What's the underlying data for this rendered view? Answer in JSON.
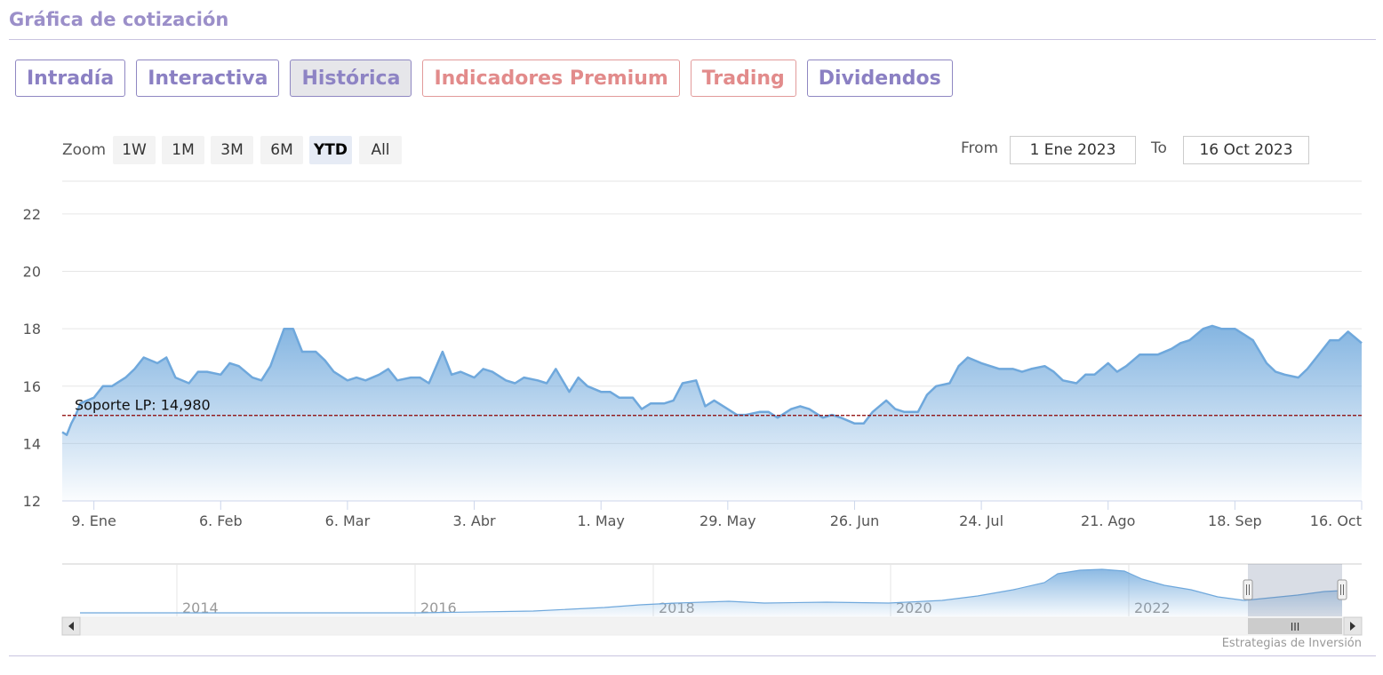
{
  "header": {
    "title": "Gráfica de cotización"
  },
  "tabs": [
    {
      "label": "Intradía",
      "active": false,
      "premium": false
    },
    {
      "label": "Interactiva",
      "active": false,
      "premium": false
    },
    {
      "label": "Histórica",
      "active": true,
      "premium": false
    },
    {
      "label": "Indicadores Premium",
      "active": false,
      "premium": true
    },
    {
      "label": "Trading",
      "active": false,
      "premium": true
    },
    {
      "label": "Dividendos",
      "active": false,
      "premium": false
    }
  ],
  "zoom": {
    "label": "Zoom",
    "buttons": [
      {
        "label": "1W",
        "active": false
      },
      {
        "label": "1M",
        "active": false
      },
      {
        "label": "3M",
        "active": false
      },
      {
        "label": "6M",
        "active": false
      },
      {
        "label": "YTD",
        "active": true
      },
      {
        "label": "All",
        "active": false
      }
    ]
  },
  "range": {
    "from_label": "From",
    "from_value": "1 Ene 2023",
    "to_label": "To",
    "to_value": "16 Oct 2023"
  },
  "credits": "Estrategias de Inversión",
  "colors": {
    "line": "#6fa8dc",
    "accent": "#9b8fc9",
    "premium": "#e28b8b",
    "support": "#8b0000"
  },
  "chart_data": {
    "type": "area",
    "title": "",
    "xlabel": "",
    "ylabel": "",
    "ylim": [
      12,
      22.4
    ],
    "y_ticks": [
      12,
      14,
      16,
      18,
      20,
      22
    ],
    "grid": true,
    "x_ticks": [
      {
        "date": "2023-01-09",
        "label": "9. Ene"
      },
      {
        "date": "2023-02-06",
        "label": "6. Feb"
      },
      {
        "date": "2023-03-06",
        "label": "6. Mar"
      },
      {
        "date": "2023-04-03",
        "label": "3. Abr"
      },
      {
        "date": "2023-05-01",
        "label": "1. May"
      },
      {
        "date": "2023-05-29",
        "label": "29. May"
      },
      {
        "date": "2023-06-26",
        "label": "26. Jun"
      },
      {
        "date": "2023-07-24",
        "label": "24. Jul"
      },
      {
        "date": "2023-08-21",
        "label": "21. Ago"
      },
      {
        "date": "2023-09-18",
        "label": "18. Sep"
      },
      {
        "date": "2023-10-16",
        "label": "16. Oct"
      }
    ],
    "x_range": [
      "2023-01-02",
      "2023-10-16"
    ],
    "series": [
      {
        "points": [
          [
            "2023-01-02",
            14.4
          ],
          [
            "2023-01-03",
            14.3
          ],
          [
            "2023-01-04",
            14.7
          ],
          [
            "2023-01-05",
            15.0
          ],
          [
            "2023-01-06",
            15.4
          ],
          [
            "2023-01-09",
            15.6
          ],
          [
            "2023-01-11",
            16.0
          ],
          [
            "2023-01-13",
            16.0
          ],
          [
            "2023-01-16",
            16.3
          ],
          [
            "2023-01-18",
            16.6
          ],
          [
            "2023-01-20",
            17.0
          ],
          [
            "2023-01-23",
            16.8
          ],
          [
            "2023-01-25",
            17.0
          ],
          [
            "2023-01-27",
            16.3
          ],
          [
            "2023-01-30",
            16.1
          ],
          [
            "2023-02-01",
            16.5
          ],
          [
            "2023-02-03",
            16.5
          ],
          [
            "2023-02-06",
            16.4
          ],
          [
            "2023-02-08",
            16.8
          ],
          [
            "2023-02-10",
            16.7
          ],
          [
            "2023-02-13",
            16.3
          ],
          [
            "2023-02-15",
            16.2
          ],
          [
            "2023-02-17",
            16.7
          ],
          [
            "2023-02-20",
            18.0
          ],
          [
            "2023-02-22",
            18.0
          ],
          [
            "2023-02-24",
            17.2
          ],
          [
            "2023-02-27",
            17.2
          ],
          [
            "2023-03-01",
            16.9
          ],
          [
            "2023-03-03",
            16.5
          ],
          [
            "2023-03-06",
            16.2
          ],
          [
            "2023-03-08",
            16.3
          ],
          [
            "2023-03-10",
            16.2
          ],
          [
            "2023-03-13",
            16.4
          ],
          [
            "2023-03-15",
            16.6
          ],
          [
            "2023-03-17",
            16.2
          ],
          [
            "2023-03-20",
            16.3
          ],
          [
            "2023-03-22",
            16.3
          ],
          [
            "2023-03-24",
            16.1
          ],
          [
            "2023-03-27",
            17.2
          ],
          [
            "2023-03-29",
            16.4
          ],
          [
            "2023-03-31",
            16.5
          ],
          [
            "2023-04-03",
            16.3
          ],
          [
            "2023-04-05",
            16.6
          ],
          [
            "2023-04-07",
            16.5
          ],
          [
            "2023-04-10",
            16.2
          ],
          [
            "2023-04-12",
            16.1
          ],
          [
            "2023-04-14",
            16.3
          ],
          [
            "2023-04-17",
            16.2
          ],
          [
            "2023-04-19",
            16.1
          ],
          [
            "2023-04-21",
            16.6
          ],
          [
            "2023-04-24",
            15.8
          ],
          [
            "2023-04-26",
            16.3
          ],
          [
            "2023-04-28",
            16.0
          ],
          [
            "2023-05-01",
            15.8
          ],
          [
            "2023-05-03",
            15.8
          ],
          [
            "2023-05-05",
            15.6
          ],
          [
            "2023-05-08",
            15.6
          ],
          [
            "2023-05-10",
            15.2
          ],
          [
            "2023-05-12",
            15.4
          ],
          [
            "2023-05-15",
            15.4
          ],
          [
            "2023-05-17",
            15.5
          ],
          [
            "2023-05-19",
            16.1
          ],
          [
            "2023-05-22",
            16.2
          ],
          [
            "2023-05-24",
            15.3
          ],
          [
            "2023-05-26",
            15.5
          ],
          [
            "2023-05-29",
            15.2
          ],
          [
            "2023-05-31",
            15.0
          ],
          [
            "2023-06-02",
            15.0
          ],
          [
            "2023-06-05",
            15.1
          ],
          [
            "2023-06-07",
            15.1
          ],
          [
            "2023-06-09",
            14.9
          ],
          [
            "2023-06-12",
            15.2
          ],
          [
            "2023-06-14",
            15.3
          ],
          [
            "2023-06-16",
            15.2
          ],
          [
            "2023-06-19",
            14.9
          ],
          [
            "2023-06-21",
            15.0
          ],
          [
            "2023-06-23",
            14.9
          ],
          [
            "2023-06-26",
            14.7
          ],
          [
            "2023-06-28",
            14.7
          ],
          [
            "2023-06-30",
            15.1
          ],
          [
            "2023-07-03",
            15.5
          ],
          [
            "2023-07-05",
            15.2
          ],
          [
            "2023-07-07",
            15.1
          ],
          [
            "2023-07-10",
            15.1
          ],
          [
            "2023-07-12",
            15.7
          ],
          [
            "2023-07-14",
            16.0
          ],
          [
            "2023-07-17",
            16.1
          ],
          [
            "2023-07-19",
            16.7
          ],
          [
            "2023-07-21",
            17.0
          ],
          [
            "2023-07-24",
            16.8
          ],
          [
            "2023-07-26",
            16.7
          ],
          [
            "2023-07-28",
            16.6
          ],
          [
            "2023-07-31",
            16.6
          ],
          [
            "2023-08-02",
            16.5
          ],
          [
            "2023-08-04",
            16.6
          ],
          [
            "2023-08-07",
            16.7
          ],
          [
            "2023-08-09",
            16.5
          ],
          [
            "2023-08-11",
            16.2
          ],
          [
            "2023-08-14",
            16.1
          ],
          [
            "2023-08-16",
            16.4
          ],
          [
            "2023-08-18",
            16.4
          ],
          [
            "2023-08-21",
            16.8
          ],
          [
            "2023-08-23",
            16.5
          ],
          [
            "2023-08-25",
            16.7
          ],
          [
            "2023-08-28",
            17.1
          ],
          [
            "2023-08-30",
            17.1
          ],
          [
            "2023-09-01",
            17.1
          ],
          [
            "2023-09-04",
            17.3
          ],
          [
            "2023-09-06",
            17.5
          ],
          [
            "2023-09-08",
            17.6
          ],
          [
            "2023-09-11",
            18.0
          ],
          [
            "2023-09-13",
            18.1
          ],
          [
            "2023-09-15",
            18.0
          ],
          [
            "2023-09-18",
            18.0
          ],
          [
            "2023-09-20",
            17.8
          ],
          [
            "2023-09-22",
            17.6
          ],
          [
            "2023-09-25",
            16.8
          ],
          [
            "2023-09-27",
            16.5
          ],
          [
            "2023-09-29",
            16.4
          ],
          [
            "2023-10-02",
            16.3
          ],
          [
            "2023-10-04",
            16.6
          ],
          [
            "2023-10-06",
            17.0
          ],
          [
            "2023-10-09",
            17.6
          ],
          [
            "2023-10-11",
            17.6
          ],
          [
            "2023-10-13",
            17.9
          ],
          [
            "2023-10-16",
            17.5
          ]
        ]
      }
    ],
    "annotation": {
      "label": "Soporte LP: 14,980",
      "value": 14.98,
      "style": "dashed"
    },
    "navigator": {
      "year_labels": [
        "2014",
        "2016",
        "2018",
        "2020",
        "2022"
      ],
      "scroll_label": "III"
    }
  }
}
